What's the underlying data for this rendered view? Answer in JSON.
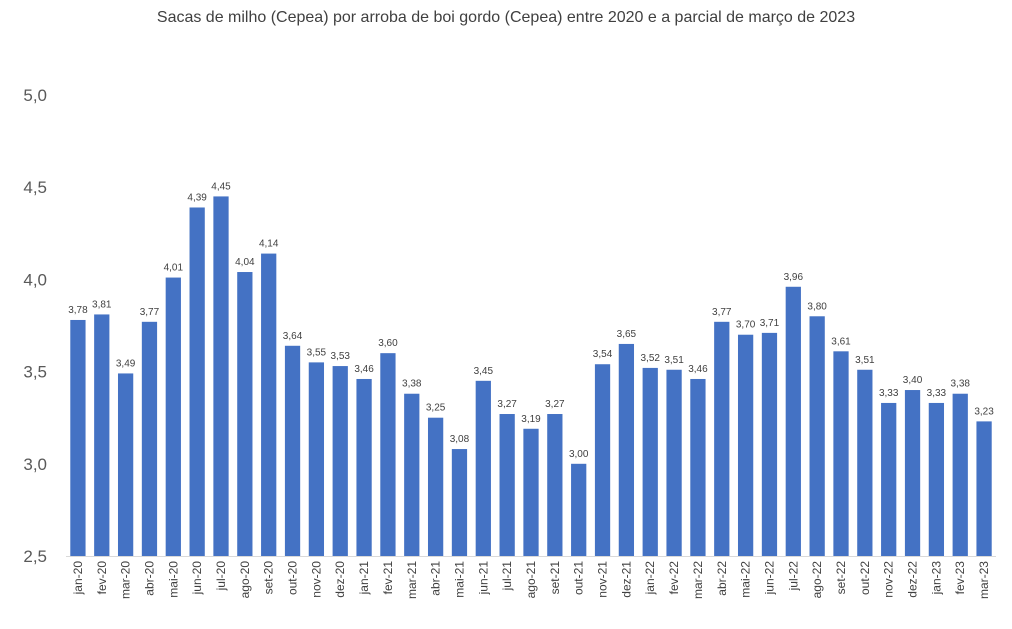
{
  "chart_data": {
    "type": "bar",
    "title": "Sacas de milho (Cepea) por arroba de boi gordo (Cepea) entre 2020 e a parcial de março de 2023",
    "xlabel": "",
    "ylabel": "",
    "ylim": [
      2.5,
      5.0
    ],
    "yticks": [
      "2,5",
      "3,0",
      "3,5",
      "4,0",
      "4,5",
      "5,0"
    ],
    "grid": false,
    "legend": "none",
    "bar_color": "#4472C4",
    "categories": [
      "jan-20",
      "fev-20",
      "mar-20",
      "abr-20",
      "mai-20",
      "jun-20",
      "jul-20",
      "ago-20",
      "set-20",
      "out-20",
      "nov-20",
      "dez-20",
      "jan-21",
      "fev-21",
      "mar-21",
      "abr-21",
      "mai-21",
      "jun-21",
      "jul-21",
      "ago-21",
      "set-21",
      "out-21",
      "nov-21",
      "dez-21",
      "jan-22",
      "fev-22",
      "mar-22",
      "abr-22",
      "mai-22",
      "jun-22",
      "jul-22",
      "ago-22",
      "set-22",
      "out-22",
      "nov-22",
      "dez-22",
      "jan-23",
      "fev-23",
      "mar-23"
    ],
    "values": [
      3.78,
      3.81,
      3.49,
      3.77,
      4.01,
      4.39,
      4.45,
      4.04,
      4.14,
      3.64,
      3.55,
      3.53,
      3.46,
      3.6,
      3.38,
      3.25,
      3.08,
      3.45,
      3.27,
      3.19,
      3.27,
      3.0,
      3.54,
      3.65,
      3.52,
      3.51,
      3.46,
      3.77,
      3.7,
      3.71,
      3.96,
      3.8,
      3.61,
      3.51,
      3.33,
      3.4,
      3.33,
      3.38,
      3.23
    ],
    "value_labels": [
      "3,78",
      "3,81",
      "3,49",
      "3,77",
      "4,01",
      "4,39",
      "4,45",
      "4,04",
      "4,14",
      "3,64",
      "3,55",
      "3,53",
      "3,46",
      "3,60",
      "3,38",
      "3,25",
      "3,08",
      "3,45",
      "3,27",
      "3,19",
      "3,27",
      "3,00",
      "3,54",
      "3,65",
      "3,52",
      "3,51",
      "3,46",
      "3,77",
      "3,70",
      "3,71",
      "3,96",
      "3,80",
      "3,61",
      "3,51",
      "3,33",
      "3,40",
      "3,33",
      "3,38",
      "3,23"
    ]
  }
}
